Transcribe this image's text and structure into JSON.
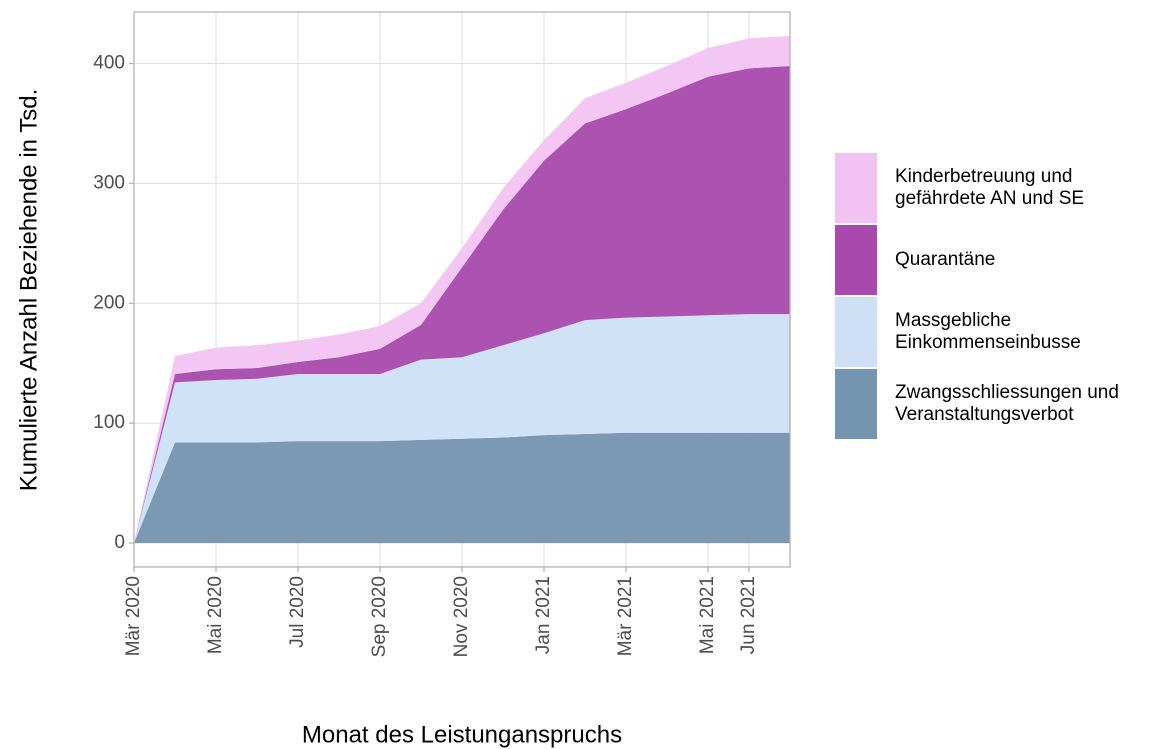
{
  "chart_data": {
    "type": "stacked_area",
    "x_label": "Monat des Leistunganspruchs",
    "y_label": "Kumulierte Anzahl Beziehende in Tsd.",
    "x": [
      "2020-03",
      "2020-04",
      "2020-05",
      "2020-06",
      "2020-07",
      "2020-08",
      "2020-09",
      "2020-10",
      "2020-11",
      "2020-12",
      "2021-01",
      "2021-02",
      "2021-03",
      "2021-04",
      "2021-05",
      "2021-06",
      "2021-07"
    ],
    "series": [
      {
        "name": "Zwangsschliessungen und Veranstaltungsverbot",
        "color": "#7594b0",
        "values": [
          0,
          84,
          84,
          84,
          85,
          85,
          85,
          86,
          87,
          88,
          90,
          91,
          92,
          92,
          92,
          92,
          92
        ]
      },
      {
        "name": "Massgebliche Einkommenseinbusse",
        "color": "#cde0f5",
        "values": [
          0,
          50,
          52,
          53,
          56,
          56,
          56,
          67,
          68,
          77,
          85,
          95,
          96,
          97,
          98,
          99,
          99
        ]
      },
      {
        "name": "Quarantäne",
        "color": "#a84aad",
        "values": [
          0,
          7,
          9,
          9,
          10,
          14,
          21,
          29,
          75,
          113,
          144,
          164,
          174,
          186,
          199,
          205,
          207
        ]
      },
      {
        "name": "Kinderbetreuung und gefährdete AN und SE",
        "color": "#f2c3f2",
        "values": [
          0,
          15,
          18,
          19,
          18,
          19,
          19,
          18,
          16,
          18,
          17,
          21,
          22,
          23,
          24,
          25,
          25
        ]
      }
    ],
    "xlim": [
      "2020-03",
      "2021-07"
    ],
    "xticks": [
      {
        "value": "2020-03",
        "label": "Mär 2020"
      },
      {
        "value": "2020-05",
        "label": "Mai 2020"
      },
      {
        "value": "2020-07",
        "label": "Jul 2020"
      },
      {
        "value": "2020-09",
        "label": "Sep 2020"
      },
      {
        "value": "2020-11",
        "label": "Nov 2020"
      },
      {
        "value": "2021-01",
        "label": "Jan 2021"
      },
      {
        "value": "2021-03",
        "label": "Mär 2021"
      },
      {
        "value": "2021-05",
        "label": "Mai 2021"
      },
      {
        "value": "2021-06",
        "label": "Jun 2021"
      }
    ],
    "ylim": [
      -20,
      443
    ],
    "yticks": [
      0,
      100,
      200,
      300,
      400
    ],
    "grid": true,
    "legend": "right"
  }
}
